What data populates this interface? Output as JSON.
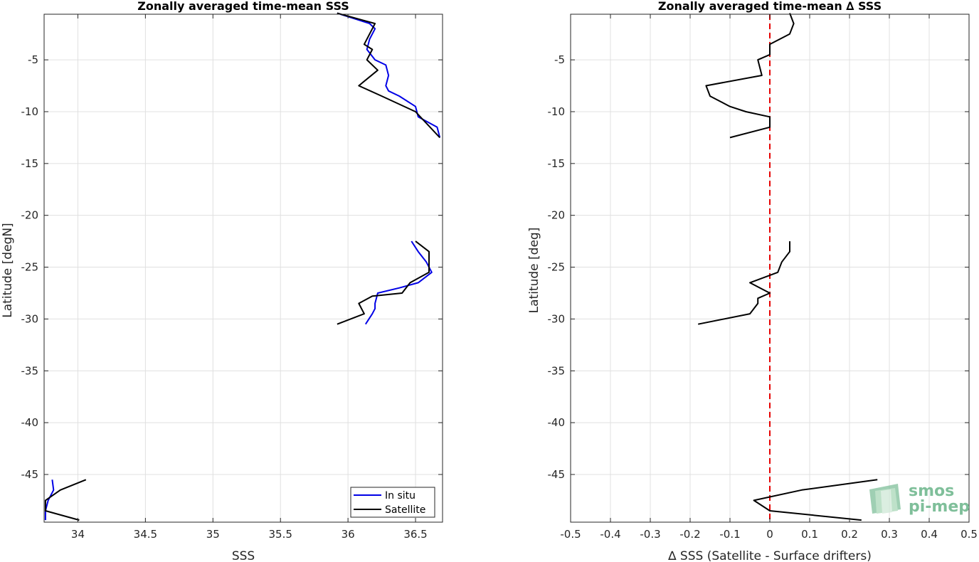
{
  "chart_data": [
    {
      "type": "line",
      "title": "Zonally averaged time-mean SSS",
      "xlabel": "SSS",
      "ylabel": "Latitude [degN]",
      "xlim": [
        33.75,
        36.7
      ],
      "ylim": [
        -49.6,
        -0.6
      ],
      "xticks": [
        34,
        34.5,
        35,
        35.5,
        36,
        36.5
      ],
      "yticks": [
        -5,
        -10,
        -15,
        -20,
        -25,
        -30,
        -35,
        -40,
        -45
      ],
      "grid": true,
      "legend": {
        "position": "bottom-right",
        "entries": [
          "In situ",
          "Satellite"
        ]
      },
      "series": [
        {
          "name": "In situ",
          "color": "#0000e6",
          "segments": [
            [
              [
                35.92,
                -0.5
              ],
              [
                36.16,
                -1.5
              ],
              [
                36.2,
                -2.0
              ],
              [
                36.16,
                -3.0
              ],
              [
                36.14,
                -4.0
              ],
              [
                36.2,
                -5.0
              ],
              [
                36.28,
                -5.5
              ],
              [
                36.3,
                -6.5
              ],
              [
                36.28,
                -7.5
              ],
              [
                36.3,
                -8.0
              ],
              [
                36.38,
                -8.5
              ],
              [
                36.5,
                -9.5
              ],
              [
                36.52,
                -10.5
              ],
              [
                36.66,
                -11.5
              ],
              [
                36.68,
                -12.5
              ]
            ],
            [
              [
                36.47,
                -22.5
              ],
              [
                36.52,
                -23.5
              ],
              [
                36.58,
                -24.5
              ],
              [
                36.62,
                -25.5
              ],
              [
                36.52,
                -26.5
              ],
              [
                36.38,
                -27.0
              ],
              [
                36.22,
                -27.5
              ],
              [
                36.2,
                -28.5
              ],
              [
                36.2,
                -29.0
              ],
              [
                36.18,
                -29.5
              ],
              [
                36.13,
                -30.5
              ]
            ],
            [
              [
                33.81,
                -45.5
              ],
              [
                33.82,
                -46.5
              ],
              [
                33.78,
                -47.5
              ],
              [
                33.76,
                -48.5
              ],
              [
                33.76,
                -49.4
              ]
            ]
          ]
        },
        {
          "name": "Satellite",
          "color": "#000000",
          "segments": [
            [
              [
                35.92,
                -0.5
              ],
              [
                36.2,
                -1.5
              ],
              [
                36.16,
                -2.5
              ],
              [
                36.12,
                -3.5
              ],
              [
                36.18,
                -4.0
              ],
              [
                36.14,
                -5.0
              ],
              [
                36.22,
                -6.0
              ],
              [
                36.08,
                -7.5
              ],
              [
                36.25,
                -8.5
              ],
              [
                36.5,
                -10.0
              ],
              [
                36.68,
                -12.5
              ]
            ],
            [
              [
                36.5,
                -22.5
              ],
              [
                36.6,
                -23.5
              ],
              [
                36.6,
                -24.5
              ],
              [
                36.6,
                -25.5
              ],
              [
                36.46,
                -26.5
              ],
              [
                36.4,
                -27.5
              ],
              [
                36.18,
                -27.8
              ],
              [
                36.08,
                -28.5
              ],
              [
                36.12,
                -29.5
              ],
              [
                35.92,
                -30.5
              ]
            ],
            [
              [
                34.06,
                -45.5
              ],
              [
                33.87,
                -46.5
              ],
              [
                33.76,
                -47.5
              ],
              [
                33.76,
                -48.5
              ],
              [
                34.01,
                -49.4
              ]
            ]
          ]
        }
      ]
    },
    {
      "type": "line",
      "title": "Zonally averaged time-mean ∆ SSS",
      "xlabel": "∆ SSS (Satellite - Surface drifters)",
      "ylabel": "Latitude [deg]",
      "xlim": [
        -0.5,
        0.5
      ],
      "ylim": [
        -49.6,
        -0.6
      ],
      "xticks": [
        -0.5,
        -0.4,
        -0.3,
        -0.2,
        -0.1,
        0,
        0.1,
        0.2,
        0.3,
        0.4,
        0.5
      ],
      "yticks": [
        -5,
        -10,
        -15,
        -20,
        -25,
        -30,
        -35,
        -40,
        -45
      ],
      "grid": true,
      "reference_line": {
        "x": 0,
        "color": "#e60000",
        "style": "dashed"
      },
      "series": [
        {
          "color": "#000000",
          "segments": [
            [
              [
                0.05,
                -0.5
              ],
              [
                0.06,
                -1.5
              ],
              [
                0.05,
                -2.5
              ],
              [
                0.0,
                -3.5
              ],
              [
                0.0,
                -4.5
              ],
              [
                -0.03,
                -5.0
              ],
              [
                -0.02,
                -6.5
              ],
              [
                -0.16,
                -7.5
              ],
              [
                -0.15,
                -8.5
              ],
              [
                -0.1,
                -9.5
              ],
              [
                -0.06,
                -10.0
              ],
              [
                0.0,
                -10.5
              ],
              [
                0.0,
                -11.5
              ],
              [
                -0.1,
                -12.5
              ]
            ],
            [
              [
                0.05,
                -22.5
              ],
              [
                0.05,
                -23.5
              ],
              [
                0.03,
                -24.5
              ],
              [
                0.02,
                -25.5
              ],
              [
                -0.05,
                -26.5
              ],
              [
                0.0,
                -27.5
              ],
              [
                -0.03,
                -28.0
              ],
              [
                -0.03,
                -28.5
              ],
              [
                -0.05,
                -29.5
              ],
              [
                -0.18,
                -30.5
              ]
            ],
            [
              [
                0.27,
                -45.5
              ],
              [
                0.08,
                -46.5
              ],
              [
                -0.04,
                -47.5
              ],
              [
                0.0,
                -48.5
              ],
              [
                0.23,
                -49.4
              ]
            ]
          ]
        }
      ]
    }
  ],
  "logo": {
    "line1": "smos",
    "line2": "pi-mep"
  }
}
